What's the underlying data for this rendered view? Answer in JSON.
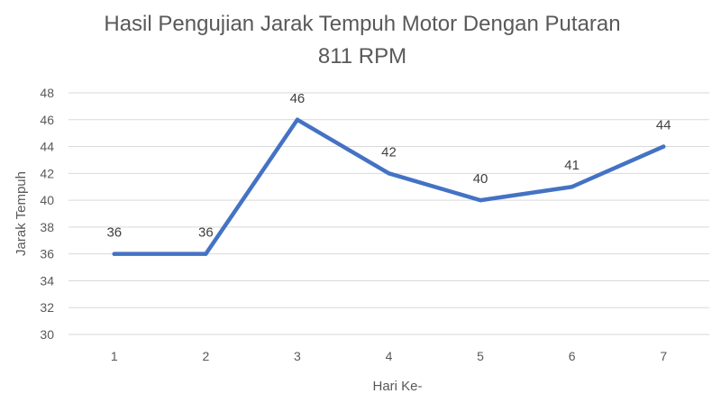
{
  "chart_data": {
    "type": "line",
    "title_line1": "Hasil Pengujian Jarak Tempuh Motor Dengan Putaran",
    "title_line2": "811 RPM",
    "xlabel": "Hari Ke-",
    "ylabel": "Jarak Tempuh",
    "categories": [
      "1",
      "2",
      "3",
      "4",
      "5",
      "6",
      "7"
    ],
    "series": [
      {
        "values": [
          36,
          36,
          46,
          42,
          40,
          41,
          44
        ],
        "color": "#4472c4"
      }
    ],
    "ylim": [
      30,
      48
    ],
    "yticks": [
      30,
      32,
      34,
      36,
      38,
      40,
      42,
      44,
      46,
      48
    ],
    "grid": true,
    "data_labels": true,
    "legend": "none"
  }
}
